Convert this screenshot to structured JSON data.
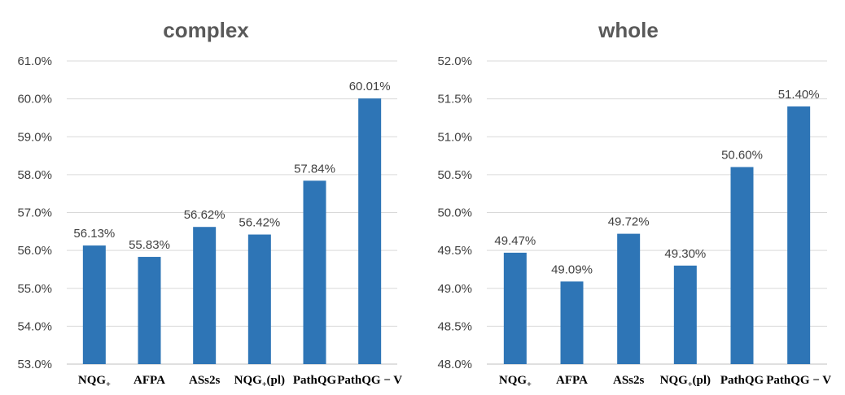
{
  "chart_data": [
    {
      "type": "bar",
      "title": "complex",
      "categories": [
        {
          "base": "NQG",
          "sub": "+",
          "suffix": ""
        },
        {
          "base": "AFPA",
          "sub": "",
          "suffix": ""
        },
        {
          "base": "ASs2s",
          "sub": "",
          "suffix": ""
        },
        {
          "base": "NQG",
          "sub": "+",
          "suffix": "(pl)"
        },
        {
          "base": "PathQG",
          "sub": "",
          "suffix": ""
        },
        {
          "base": "PathQG − V",
          "sub": "",
          "suffix": ""
        }
      ],
      "values": [
        56.13,
        55.83,
        56.62,
        56.42,
        57.84,
        60.01
      ],
      "data_labels": [
        "56.13%",
        "55.83%",
        "56.62%",
        "56.42%",
        "57.84%",
        "60.01%"
      ],
      "ylim": [
        53.0,
        61.0
      ],
      "yticks": [
        53.0,
        54.0,
        55.0,
        56.0,
        57.0,
        58.0,
        59.0,
        60.0,
        61.0
      ],
      "ytick_labels": [
        "53.0%",
        "54.0%",
        "55.0%",
        "56.0%",
        "57.0%",
        "58.0%",
        "59.0%",
        "60.0%",
        "61.0%"
      ],
      "xlabel": "",
      "ylabel": "",
      "grid": true,
      "bar_color": "#2e75b6"
    },
    {
      "type": "bar",
      "title": "whole",
      "categories": [
        {
          "base": "NQG",
          "sub": "+",
          "suffix": ""
        },
        {
          "base": "AFPA",
          "sub": "",
          "suffix": ""
        },
        {
          "base": "ASs2s",
          "sub": "",
          "suffix": ""
        },
        {
          "base": "NQG",
          "sub": "+",
          "suffix": "(pl)"
        },
        {
          "base": "PathQG",
          "sub": "",
          "suffix": ""
        },
        {
          "base": "PathQG − V",
          "sub": "",
          "suffix": ""
        }
      ],
      "values": [
        49.47,
        49.09,
        49.72,
        49.3,
        50.6,
        51.4
      ],
      "data_labels": [
        "49.47%",
        "49.09%",
        "49.72%",
        "49.30%",
        "50.60%",
        "51.40%"
      ],
      "ylim": [
        48.0,
        52.0
      ],
      "yticks": [
        48.0,
        48.5,
        49.0,
        49.5,
        50.0,
        50.5,
        51.0,
        51.5,
        52.0
      ],
      "ytick_labels": [
        "48.0%",
        "48.5%",
        "49.0%",
        "49.5%",
        "50.0%",
        "50.5%",
        "51.0%",
        "51.5%",
        "52.0%"
      ],
      "xlabel": "",
      "ylabel": "",
      "grid": true,
      "bar_color": "#2e75b6"
    }
  ]
}
